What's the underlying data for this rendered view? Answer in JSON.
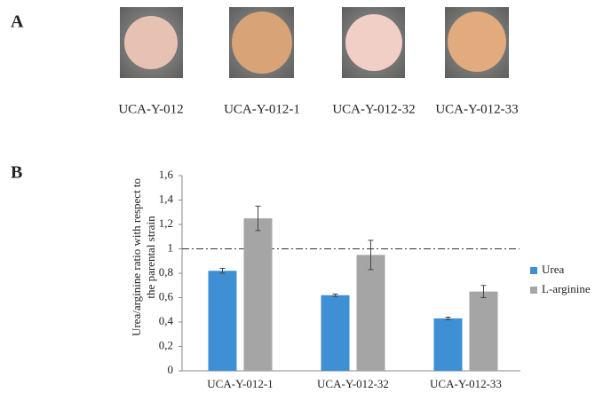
{
  "panel_a": {
    "label": "A",
    "samples": [
      "UCA-Y-012",
      "UCA-Y-012-1",
      "UCA-Y-012-32",
      "UCA-Y-012-33"
    ]
  },
  "panel_b": {
    "label": "B"
  },
  "chart_data": {
    "type": "bar",
    "ylabel": [
      "Urea/arginine  ratio with respect to",
      "the parental strain"
    ],
    "categories": [
      "UCA-Y-012-1",
      "UCA-Y-012-32",
      "UCA-Y-012-33"
    ],
    "series": [
      {
        "name": "Urea",
        "color": "#3f8fd4",
        "values": [
          0.82,
          0.62,
          0.43
        ],
        "errors": [
          0.02,
          0.01,
          0.01
        ]
      },
      {
        "name": "L-arginine",
        "color": "#a5a5a5",
        "values": [
          1.25,
          0.95,
          0.65
        ],
        "errors": [
          0.1,
          0.12,
          0.05
        ]
      }
    ],
    "reference_line": 1,
    "ylim": [
      0,
      1.6
    ],
    "yticks": [
      0,
      {
        "value": 0.2,
        "label": "0,2"
      },
      {
        "value": 0.4,
        "label": "0,4"
      },
      {
        "value": 0.6,
        "label": "0,6"
      },
      {
        "value": 0.8,
        "label": "0,8"
      },
      1,
      {
        "value": 1.2,
        "label": "1,2"
      },
      {
        "value": 1.4,
        "label": "1,4"
      },
      {
        "value": 1.6,
        "label": "1,6"
      }
    ],
    "legend": "right"
  }
}
